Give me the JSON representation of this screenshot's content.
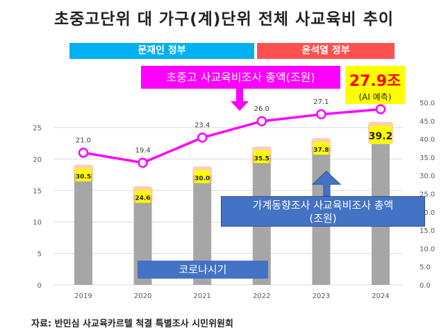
{
  "title": "초중고단위 대 가구(계)단위 전체 사교육비 추이",
  "governments": [
    "문재인 정부",
    "윤석열 정부"
  ],
  "annotations": {
    "line_label": "초중고 사교육비조사 총액(조원)",
    "forecast_value": "27.9조",
    "forecast_note": "(AI 예측)",
    "bar_label_line1": "가계동향조사 사교육비조사 총액",
    "bar_label_line2": "(조원)",
    "covid": "코로나시기"
  },
  "source": "자료: 반민심 사교육카르텔 척결 특별조사 시민위원회",
  "colors": {
    "bar": "#a6a6a6",
    "line": "#ff00ff",
    "gov1": "#00b0f0",
    "gov2": "#ff5050",
    "callout": "#4472c4",
    "label_bg": "#ffff00"
  },
  "chart_data": {
    "type": "bar+line",
    "categories": [
      "2019",
      "2020",
      "2021",
      "2022",
      "2023",
      "2024"
    ],
    "series": [
      {
        "type": "bar",
        "axis": "right",
        "values": [
          30.5,
          24.6,
          30.0,
          35.5,
          37.8,
          39.2
        ],
        "labels": [
          "30.5",
          "24.6",
          "30.0",
          "35.5",
          "37.8",
          "39.2"
        ]
      },
      {
        "type": "line",
        "axis": "left",
        "values": [
          21.0,
          19.4,
          23.4,
          26.0,
          27.1,
          27.9
        ],
        "labels": [
          "21.0",
          "19.4",
          "23.4",
          "26.0",
          "27.1",
          ""
        ]
      }
    ],
    "left_axis": {
      "ylim": [
        0,
        25
      ],
      "ticks": [
        "0",
        "5",
        "10",
        "15",
        "20",
        "25"
      ]
    },
    "right_axis": {
      "ylim": [
        0,
        50
      ],
      "ticks": [
        "0.0",
        "5.0",
        "10.0",
        "15.0",
        "20.0",
        "25.0",
        "30.0",
        "35.0",
        "40.0",
        "45.0",
        "50.0"
      ]
    },
    "grid": true
  }
}
